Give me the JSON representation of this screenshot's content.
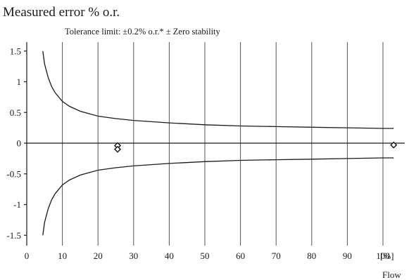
{
  "chart_data": {
    "type": "line",
    "title": "Measured error % o.r.",
    "subtitle": "Tolerance limit: ±0.2% o.r.* ± Zero stability",
    "xlabel": "Flow",
    "x_unit": "[%]",
    "xlim": [
      0,
      104
    ],
    "ylim": [
      -1.6,
      1.6
    ],
    "x_ticks": [
      0,
      10,
      20,
      30,
      40,
      50,
      60,
      70,
      80,
      90,
      100
    ],
    "y_ticks": [
      1.5,
      1,
      0.5,
      0,
      -0.5,
      -1,
      -1.5
    ],
    "grid": "vertical",
    "series": [
      {
        "role": "upper-limit",
        "x": [
          4.5,
          5,
          6,
          7,
          8,
          10,
          12,
          15,
          20,
          25,
          30,
          40,
          50,
          60,
          70,
          80,
          90,
          100,
          103
        ],
        "y": [
          1.5,
          1.29,
          1.07,
          0.92,
          0.82,
          0.68,
          0.6,
          0.52,
          0.44,
          0.4,
          0.37,
          0.33,
          0.3,
          0.28,
          0.27,
          0.26,
          0.25,
          0.24,
          0.24
        ]
      },
      {
        "role": "lower-limit",
        "x": [
          4.5,
          5,
          6,
          7,
          8,
          10,
          12,
          15,
          20,
          25,
          30,
          40,
          50,
          60,
          70,
          80,
          90,
          100,
          103
        ],
        "y": [
          -1.5,
          -1.29,
          -1.07,
          -0.92,
          -0.82,
          -0.68,
          -0.6,
          -0.52,
          -0.44,
          -0.4,
          -0.37,
          -0.33,
          -0.3,
          -0.28,
          -0.27,
          -0.26,
          -0.25,
          -0.24,
          -0.24
        ]
      },
      {
        "role": "measured",
        "style": "diamond-markers",
        "points": [
          {
            "x": 25.5,
            "y": -0.04
          },
          {
            "x": 25.5,
            "y": -0.1
          },
          {
            "x": 103,
            "y": -0.03
          }
        ]
      }
    ],
    "colors": {
      "line": "#1a1a1a",
      "axis": "#1a1a1a",
      "grid": "#555555"
    }
  }
}
